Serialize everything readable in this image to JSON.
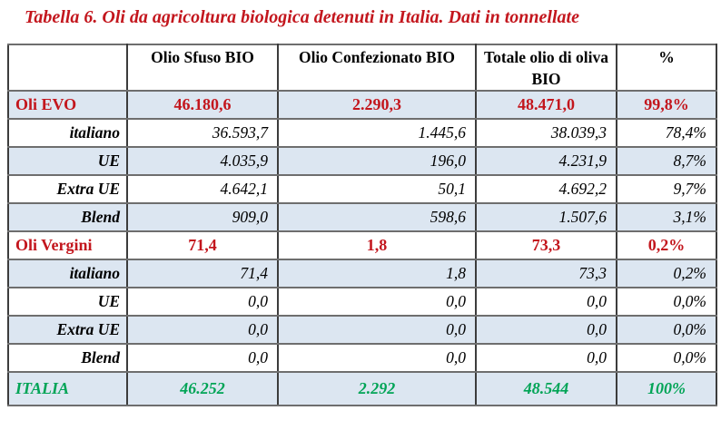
{
  "caption": "Tabella 6. Oli da agricoltura biologica detenuti in Italia. Dati in tonnellate",
  "colors": {
    "caption_red": "#c3161d",
    "section_red": "#c3161d",
    "total_green": "#00a456",
    "shaded_row_blue": "#dce6f1",
    "border_dark": "#3c3c3c",
    "border_gray": "#6e6e6e"
  },
  "table": {
    "columns": [
      "",
      "Olio Sfuso BIO",
      "Olio Confezionato BIO",
      "Totale olio di oliva BIO",
      "%"
    ],
    "rows": [
      {
        "label": "Oli EVO",
        "type": "main",
        "shaded": true,
        "values": [
          "46.180,6",
          "2.290,3",
          "48.471,0",
          "99,8%"
        ]
      },
      {
        "label": "italiano",
        "type": "sub",
        "shaded": false,
        "values": [
          "36.593,7",
          "1.445,6",
          "38.039,3",
          "78,4%"
        ]
      },
      {
        "label": "UE",
        "type": "sub",
        "shaded": true,
        "values": [
          "4.035,9",
          "196,0",
          "4.231,9",
          "8,7%"
        ]
      },
      {
        "label": "Extra UE",
        "type": "sub",
        "shaded": false,
        "values": [
          "4.642,1",
          "50,1",
          "4.692,2",
          "9,7%"
        ]
      },
      {
        "label": "Blend",
        "type": "sub",
        "shaded": true,
        "values": [
          "909,0",
          "598,6",
          "1.507,6",
          "3,1%"
        ]
      },
      {
        "label": "Oli Vergini",
        "type": "main",
        "shaded": false,
        "values": [
          "71,4",
          "1,8",
          "73,3",
          "0,2%"
        ]
      },
      {
        "label": "italiano",
        "type": "sub",
        "shaded": true,
        "values": [
          "71,4",
          "1,8",
          "73,3",
          "0,2%"
        ]
      },
      {
        "label": "UE",
        "type": "sub",
        "shaded": false,
        "values": [
          "0,0",
          "0,0",
          "0,0",
          "0,0%"
        ]
      },
      {
        "label": "Extra UE",
        "type": "sub",
        "shaded": true,
        "values": [
          "0,0",
          "0,0",
          "0,0",
          "0,0%"
        ]
      },
      {
        "label": "Blend",
        "type": "sub",
        "shaded": false,
        "values": [
          "0,0",
          "0,0",
          "0,0",
          "0,0%"
        ]
      },
      {
        "label": "ITALIA",
        "type": "total",
        "shaded": true,
        "values": [
          "46.252",
          "2.292",
          "48.544",
          "100%"
        ]
      }
    ]
  }
}
